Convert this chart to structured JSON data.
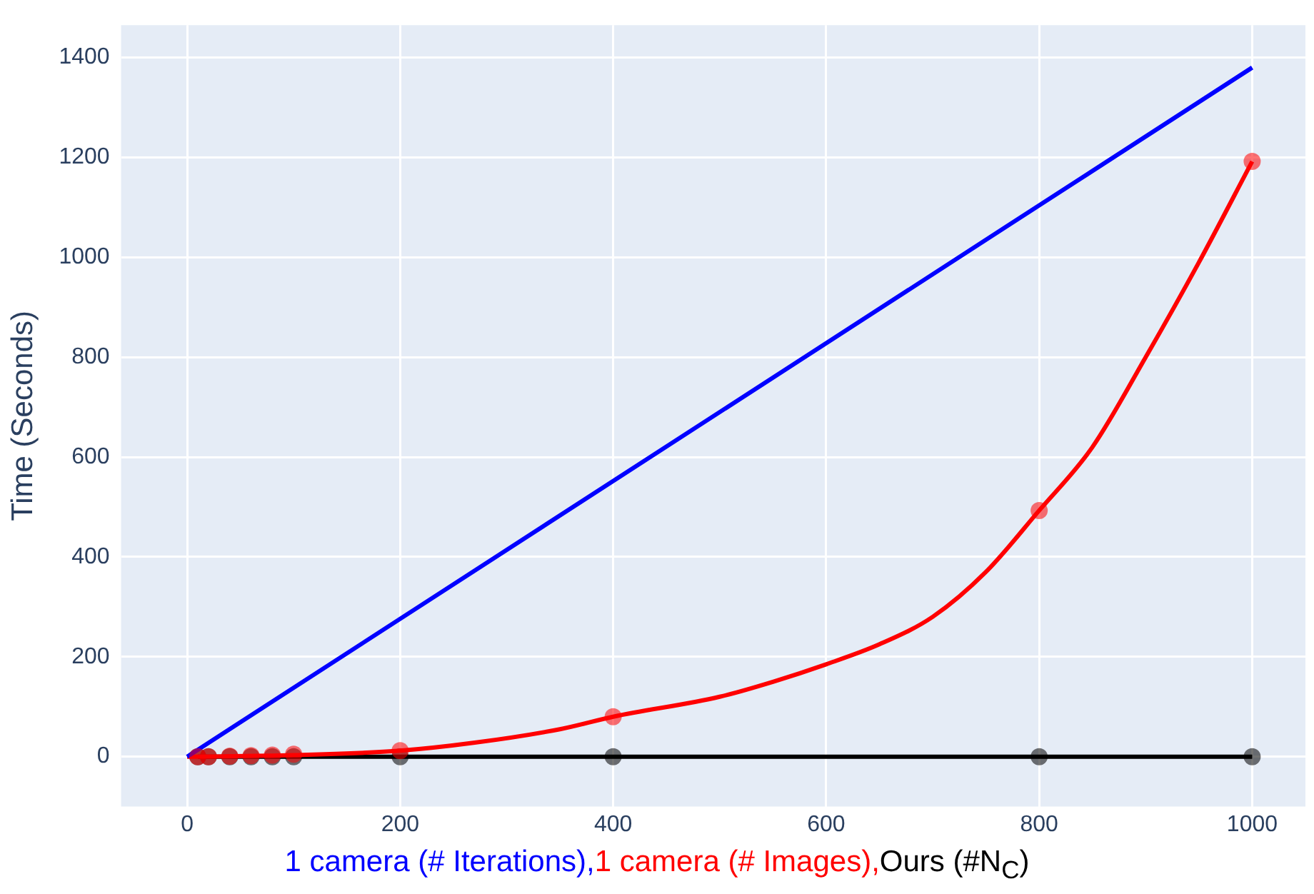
{
  "chart_data": {
    "type": "line",
    "ylabel": "Time (Seconds)",
    "xlim": [
      -62,
      1050
    ],
    "ylim": [
      -100,
      1465
    ],
    "xticks": [
      0,
      200,
      400,
      600,
      800,
      1000
    ],
    "yticks": [
      0,
      200,
      400,
      600,
      800,
      1000,
      1200,
      1400
    ],
    "grid": true,
    "legend": "bottom",
    "series": [
      {
        "name": "1 camera (# Iterations),",
        "color": "#0000ff",
        "marker": "none",
        "x": [
          0,
          1000
        ],
        "values": [
          0,
          1380
        ]
      },
      {
        "color": "#ff0000",
        "marker": "none",
        "x": [
          0,
          100,
          200,
          270,
          350,
          400,
          500,
          550,
          600,
          650,
          700,
          750,
          800,
          850,
          900,
          950,
          1000
        ],
        "values": [
          0,
          3,
          12,
          28,
          55,
          80,
          120,
          150,
          185,
          225,
          280,
          370,
          493,
          620,
          800,
          990,
          1192
        ]
      },
      {
        "name": "1 camera (# Images),",
        "color": "#ff0000",
        "type": "scatter",
        "marker": "circle",
        "x": [
          10,
          20,
          40,
          60,
          80,
          100,
          200,
          400,
          800,
          1000
        ],
        "values": [
          0,
          0,
          1,
          2,
          3,
          5,
          12,
          80,
          493,
          1192
        ]
      },
      {
        "name": "Ours (#N$_{C}$)",
        "color": "#000000",
        "marker": "circle",
        "x": [
          10,
          20,
          40,
          60,
          80,
          100,
          200,
          400,
          800,
          1000
        ],
        "values": [
          0,
          0,
          0,
          0,
          0,
          0,
          0,
          0,
          0,
          0
        ]
      }
    ]
  }
}
